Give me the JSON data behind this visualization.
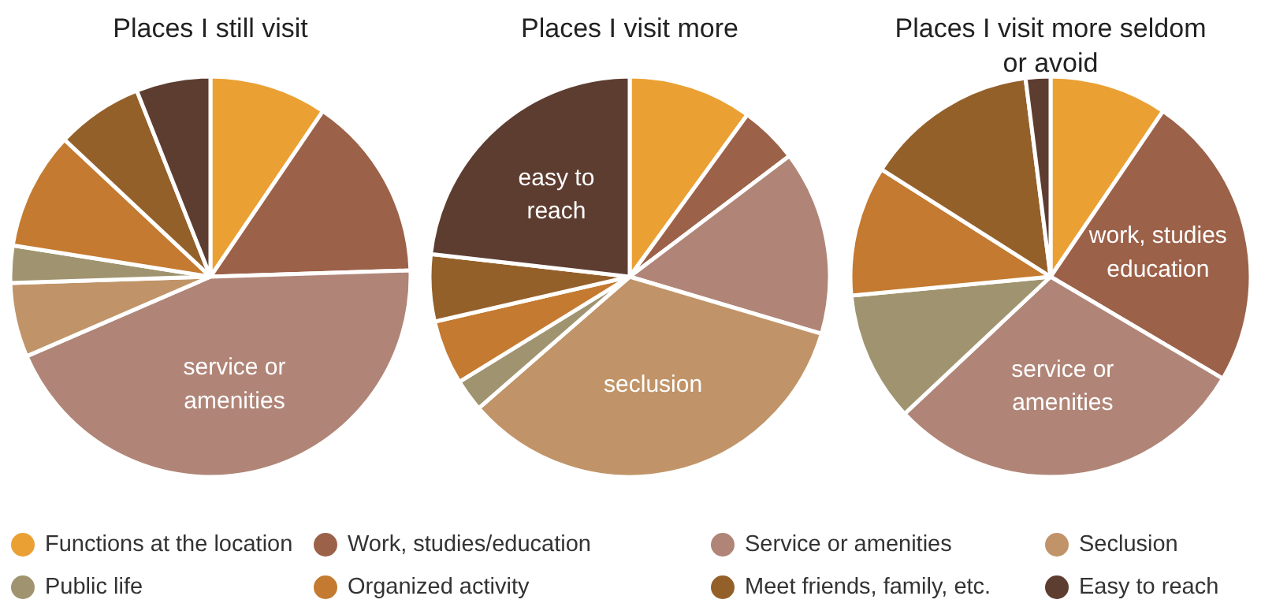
{
  "chart_data": [
    {
      "type": "pie",
      "title": "Places I still visit",
      "legend": "bottom",
      "categories": [
        "Functions at the location",
        "Work, studies/education",
        "Service or amenities",
        "Seclusion",
        "Public life",
        "Organized activity",
        "Meet friends, family, etc.",
        "Easy to reach"
      ],
      "values": [
        9.5,
        15,
        44,
        6,
        3,
        9.5,
        7,
        6
      ],
      "colors": [
        "#eba034",
        "#9c6149",
        "#b08577",
        "#c09468",
        "#a09470",
        "#c47a30",
        "#94602a",
        "#5e3d31"
      ],
      "annotations": [
        {
          "text": "service or\namenities",
          "x": "Service or amenities"
        }
      ]
    },
    {
      "type": "pie",
      "title": "Places I visit more",
      "categories": [
        null,
        null,
        null,
        null,
        null,
        null,
        null,
        null
      ],
      "values": [
        10,
        4.7,
        14.9,
        34,
        2.6,
        5.2,
        5.4,
        23.2
      ],
      "colors": [
        "#eba034",
        "#9c6149",
        "#b08577",
        "#c09468",
        "#a09470",
        "#c47a30",
        "#94602a",
        "#5e3d31"
      ],
      "annotations": [
        {
          "text": "easy to\nreach",
          "x": "Easy to reach"
        },
        {
          "text": "seclusion",
          "x": "Seclusion"
        }
      ]
    },
    {
      "type": "pie",
      "title": "Places I visit more seldom\nor avoid",
      "categories": [
        null,
        null,
        null,
        null,
        null,
        null,
        null,
        null
      ],
      "values": [
        9.5,
        24,
        29.5,
        0,
        10.5,
        10.5,
        14,
        2
      ],
      "colors": [
        "#eba034",
        "#9c6149",
        "#b08577",
        "#c09468",
        "#a09470",
        "#c47a30",
        "#94602a",
        "#5e3d31"
      ],
      "annotations": [
        {
          "text": "work, studies\neducation",
          "x": "Work, studies/education"
        },
        {
          "text": "service or\namenities",
          "x": "Service or amenities"
        }
      ]
    }
  ]
}
